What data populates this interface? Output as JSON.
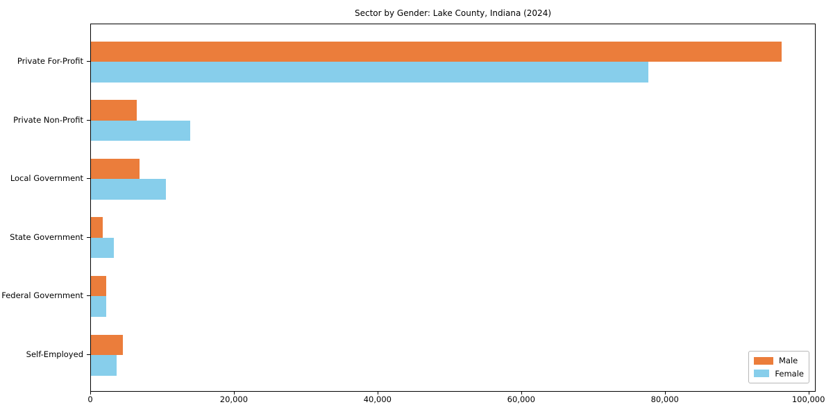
{
  "chart_data": {
    "type": "bar",
    "orientation": "horizontal",
    "title": "Sector by Gender: Lake County, Indiana (2024)",
    "categories": [
      "Private For-Profit",
      "Private Non-Profit",
      "Local Government",
      "State Government",
      "Federal Government",
      "Self-Employed"
    ],
    "series": [
      {
        "name": "Male",
        "color": "#EB7D3B",
        "values": [
          96200,
          6400,
          6800,
          1600,
          2100,
          4400
        ]
      },
      {
        "name": "Female",
        "color": "#87CEEB",
        "values": [
          77600,
          13800,
          10400,
          3200,
          2100,
          3600
        ]
      }
    ],
    "xlabel": "",
    "ylabel": "",
    "xlim": [
      0,
      101000
    ],
    "xticks": [
      0,
      20000,
      40000,
      60000,
      80000,
      100000
    ],
    "xtick_labels": [
      "0",
      "20,000",
      "40,000",
      "60,000",
      "80,000",
      "100,000"
    ],
    "grid": false,
    "legend": {
      "position": "lower right",
      "entries": [
        "Male",
        "Female"
      ]
    }
  }
}
